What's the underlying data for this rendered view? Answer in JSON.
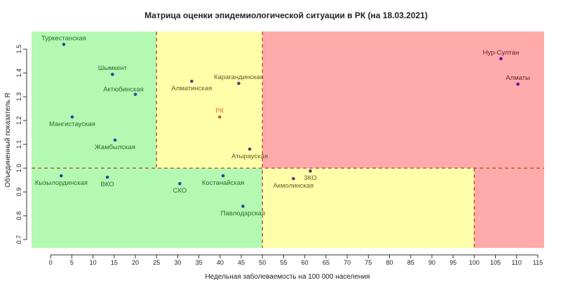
{
  "chart_data": {
    "type": "scatter",
    "title": "Матрица оценки эпидемиологической ситуации в РК (на 18.03.2021)",
    "xlabel": "Недельная заболеваемость на 100 000 населения",
    "ylabel": "Объединенный показатель R",
    "xlim": [
      -4.5,
      116.5
    ],
    "ylim": [
      0.665,
      1.574
    ],
    "x_ticks": [
      0,
      5,
      10,
      15,
      20,
      25,
      30,
      35,
      40,
      45,
      50,
      55,
      60,
      65,
      70,
      75,
      80,
      85,
      90,
      95,
      100,
      105,
      110,
      115
    ],
    "y_ticks": [
      "0.7",
      "0.8",
      "0.9",
      "1.0",
      "1.1",
      "1.2",
      "1.3",
      "1.4",
      "1.5"
    ],
    "grid": false,
    "thresholds": {
      "x": [
        25,
        50,
        100
      ],
      "y": 1.0
    },
    "zone_colors": {
      "green": "#b3f9b1",
      "yellow": "#ffffaa",
      "red": "#ffabab",
      "threshold_line": "#b5472e"
    },
    "points": [
      {
        "name": "Туркестанская",
        "x": 3.1,
        "y": 1.52,
        "zone": "green",
        "label_pos": "above"
      },
      {
        "name": "Шымкент",
        "x": 14.6,
        "y": 1.394,
        "zone": "green",
        "label_pos": "above"
      },
      {
        "name": "Актюбинская",
        "x": 20.0,
        "y": 1.31,
        "zone": "green",
        "label_pos": "above-left"
      },
      {
        "name": "Мангистауская",
        "x": 5.1,
        "y": 1.215,
        "zone": "green",
        "label_pos": "below"
      },
      {
        "name": "Жамбылская",
        "x": 15.2,
        "y": 1.118,
        "zone": "green",
        "label_pos": "below"
      },
      {
        "name": "Кызылординская",
        "x": 2.5,
        "y": 0.968,
        "zone": "green",
        "label_pos": "below"
      },
      {
        "name": "ВКО",
        "x": 13.4,
        "y": 0.962,
        "zone": "green",
        "label_pos": "below"
      },
      {
        "name": "СКО",
        "x": 30.5,
        "y": 0.935,
        "zone": "green",
        "label_pos": "below"
      },
      {
        "name": "Костанайская",
        "x": 40.7,
        "y": 0.968,
        "zone": "green",
        "label_pos": "below"
      },
      {
        "name": "Павлодарская",
        "x": 45.4,
        "y": 0.84,
        "zone": "green",
        "label_pos": "below"
      },
      {
        "name": "Алматинская",
        "x": 33.3,
        "y": 1.365,
        "zone": "yellow",
        "label_pos": "below"
      },
      {
        "name": "Карагандинская",
        "x": 44.4,
        "y": 1.356,
        "zone": "yellow",
        "label_pos": "above"
      },
      {
        "name": "РК",
        "x": 39.9,
        "y": 1.215,
        "zone": "rk",
        "label_pos": "above"
      },
      {
        "name": "Атырауская",
        "x": 47.0,
        "y": 1.08,
        "zone": "yellow",
        "label_pos": "below"
      },
      {
        "name": "Акмолинская",
        "x": 57.3,
        "y": 0.956,
        "zone": "yellow",
        "label_pos": "below"
      },
      {
        "name": "ЗКО",
        "x": 61.3,
        "y": 0.988,
        "zone": "yellow",
        "label_pos": "below"
      },
      {
        "name": "Нур-Султан",
        "x": 106.3,
        "y": 1.46,
        "zone": "red",
        "label_pos": "above"
      },
      {
        "name": "Алматы",
        "x": 110.3,
        "y": 1.353,
        "zone": "red",
        "label_pos": "above"
      }
    ],
    "point_colors": {
      "green": "#1d4f9c",
      "yellow": "#55407a",
      "red": "#5a0f9a",
      "rk": "#e0541c"
    },
    "label_colors": {
      "green": "#2f6a2f",
      "yellow": "#6b5a2a",
      "red": "#6a2020",
      "rk": "#e0702c"
    }
  }
}
